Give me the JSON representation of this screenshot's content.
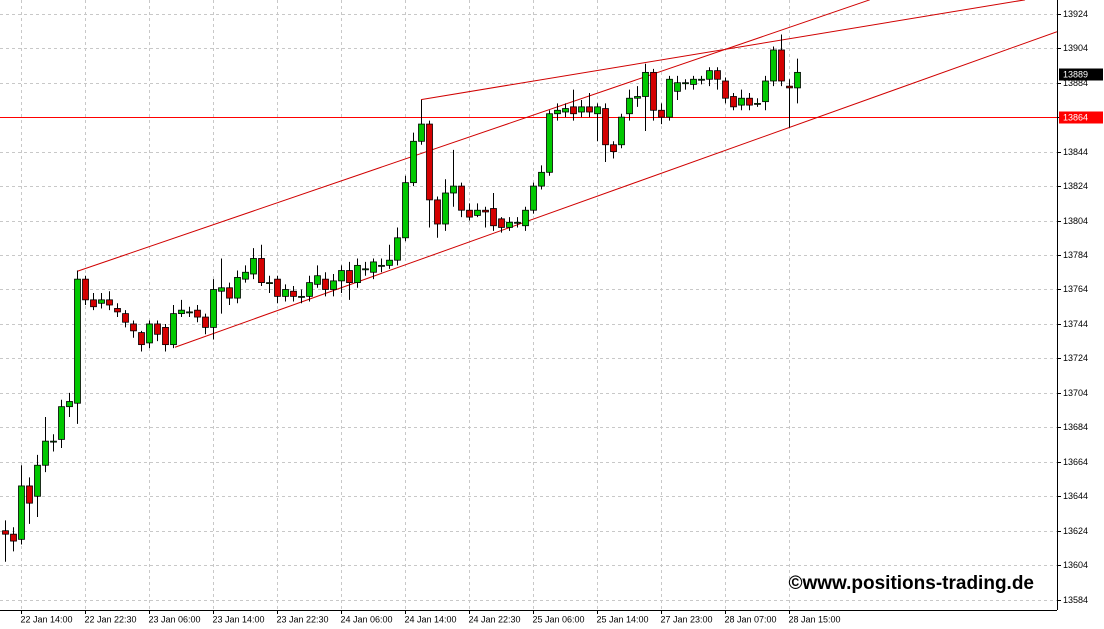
{
  "chart_data": {
    "type": "candlestick",
    "categories": [
      null,
      null,
      "22 Jan 14:00",
      null,
      null,
      null,
      null,
      null,
      null,
      null,
      "22 Jan 22:30",
      null,
      null,
      null,
      null,
      null,
      null,
      null,
      "23 Jan 06:00",
      null,
      null,
      null,
      null,
      null,
      null,
      null,
      "23 Jan 14:00",
      null,
      null,
      null,
      null,
      null,
      null,
      null,
      "23 Jan 22:30",
      null,
      null,
      null,
      null,
      null,
      null,
      null,
      "24 Jan 06:00",
      null,
      null,
      null,
      null,
      null,
      null,
      null,
      "24 Jan 14:00",
      null,
      null,
      null,
      null,
      null,
      null,
      null,
      "24 Jan 22:30",
      null,
      null,
      null,
      null,
      null,
      null,
      null,
      "25 Jan 06:00",
      null,
      null,
      null,
      null,
      null,
      null,
      null,
      "25 Jan 14:00",
      null,
      null,
      null,
      null,
      null,
      null,
      null,
      "27 Jan 23:00",
      null,
      null,
      null,
      null,
      null,
      null,
      null,
      "28 Jan 07:00",
      null,
      null,
      null,
      null,
      null,
      null,
      null,
      "28 Jan 15:00",
      null
    ],
    "open": [
      13624,
      13622,
      13619,
      13650,
      13644,
      13662,
      13676,
      13677,
      13696,
      13698,
      13770,
      13758,
      13756,
      13758,
      13753,
      13750,
      13744,
      13739,
      13733,
      13744,
      13742,
      13732,
      13750,
      13751,
      13752,
      13748,
      13742,
      13763,
      13765,
      13759,
      13770,
      13773,
      13782,
      13768,
      13770,
      13760,
      13763,
      13760,
      13760,
      13767,
      13770,
      13764,
      13769,
      13775,
      13768,
      13776,
      13774,
      13778,
      13778,
      13781,
      13794,
      13826,
      13850,
      13860,
      13816,
      13802,
      13820,
      13824,
      13810,
      13807,
      13810,
      13811,
      13805,
      13800,
      13803,
      13801,
      13810,
      13824,
      13832,
      13866,
      13867,
      13870,
      13867,
      13870,
      13866,
      13869,
      13848,
      13848,
      13866,
      13875,
      13876,
      13890,
      13868,
      13864,
      13879,
      13884,
      13883,
      13886,
      13886,
      13891,
      13885,
      13876,
      13871,
      13875,
      13872,
      13873,
      13885,
      13903,
      13882,
      13881
    ],
    "high": [
      13630,
      13626,
      13662,
      13655,
      13668,
      13690,
      13680,
      13700,
      13704,
      13775,
      13772,
      13762,
      13762,
      13763,
      13756,
      13752,
      13746,
      13740,
      13746,
      13746,
      13744,
      13755,
      13758,
      13754,
      13755,
      13750,
      13770,
      13782,
      13768,
      13775,
      13778,
      13788,
      13790,
      13772,
      13772,
      13767,
      13766,
      13764,
      13772,
      13778,
      13774,
      13773,
      13778,
      13780,
      13782,
      13780,
      13782,
      13782,
      13790,
      13800,
      13830,
      13855,
      13874,
      13862,
      13818,
      13828,
      13845,
      13826,
      13814,
      13814,
      13812,
      13820,
      13806,
      13806,
      13806,
      13812,
      13826,
      13836,
      13868,
      13872,
      13872,
      13880,
      13874,
      13878,
      13872,
      13872,
      13850,
      13866,
      13880,
      13882,
      13895,
      13892,
      13872,
      13888,
      13888,
      13886,
      13888,
      13888,
      13893,
      13893,
      13887,
      13878,
      13880,
      13878,
      13875,
      13888,
      13905,
      13912,
      13886,
      13898
    ],
    "low": [
      13606,
      13612,
      13616,
      13628,
      13632,
      13658,
      13670,
      13672,
      13690,
      13686,
      13755,
      13752,
      13753,
      13752,
      13748,
      13742,
      13736,
      13728,
      13730,
      13734,
      13728,
      13730,
      13748,
      13748,
      13745,
      13738,
      13735,
      13750,
      13755,
      13756,
      13768,
      13770,
      13766,
      13762,
      13756,
      13757,
      13757,
      13756,
      13757,
      13765,
      13760,
      13760,
      13762,
      13758,
      13765,
      13772,
      13770,
      13774,
      13776,
      13778,
      13792,
      13824,
      13848,
      13800,
      13794,
      13798,
      13812,
      13806,
      13804,
      13806,
      13800,
      13798,
      13797,
      13798,
      13800,
      13798,
      13808,
      13822,
      13830,
      13862,
      13864,
      13862,
      13864,
      13864,
      13850,
      13838,
      13840,
      13846,
      13862,
      13870,
      13856,
      13862,
      13860,
      13862,
      13874,
      13880,
      13880,
      13883,
      13882,
      13880,
      13872,
      13868,
      13868,
      13868,
      13870,
      13868,
      13882,
      13882,
      13858,
      13872
    ],
    "close": [
      13622,
      13618,
      13650,
      13640,
      13662,
      13676,
      13676,
      13696,
      13699,
      13770,
      13758,
      13754,
      13758,
      13755,
      13751,
      13745,
      13740,
      13732,
      13744,
      13738,
      13732,
      13750,
      13752,
      13751,
      13748,
      13742,
      13764,
      13765,
      13759,
      13771,
      13774,
      13782,
      13768,
      13768,
      13760,
      13764,
      13760,
      13760,
      13768,
      13772,
      13764,
      13769,
      13775,
      13768,
      13778,
      13776,
      13780,
      13778,
      13781,
      13794,
      13826,
      13850,
      13860,
      13816,
      13802,
      13820,
      13824,
      13810,
      13806,
      13810,
      13809,
      13801,
      13800,
      13803,
      13803,
      13810,
      13824,
      13832,
      13866,
      13868,
      13869,
      13866,
      13870,
      13867,
      13870,
      13848,
      13844,
      13864,
      13875,
      13876,
      13890,
      13868,
      13864,
      13886,
      13884,
      13884,
      13886,
      13886,
      13891,
      13886,
      13875,
      13870,
      13875,
      13871,
      13872,
      13885,
      13903,
      13885,
      13881,
      13890
    ],
    "up_color": "#00c800",
    "down_color": "#d40000",
    "ylim": [
      13578,
      13932
    ],
    "yticks": [
      13584,
      13604,
      13624,
      13644,
      13664,
      13684,
      13704,
      13724,
      13744,
      13764,
      13784,
      13804,
      13824,
      13844,
      13864,
      13884,
      13904,
      13924
    ],
    "grid": true,
    "hline": {
      "value": 13864,
      "color": "#ff0000"
    },
    "current_price": 13889,
    "trendlines": [
      {
        "x": [
          9,
          108.1
        ],
        "y": [
          13774.5,
          13932.1
        ],
        "color": "#d00000"
      },
      {
        "x": [
          21.25,
          131.5
        ],
        "y": [
          13730.5,
          13913.6
        ],
        "color": "#d00000"
      },
      {
        "x": [
          52,
          127.5
        ],
        "y": [
          13874.2,
          13932.1
        ],
        "color": "#d00000"
      }
    ],
    "watermark": "©www.positions-trading.de",
    "watermark_color": "#1a3fc8"
  }
}
